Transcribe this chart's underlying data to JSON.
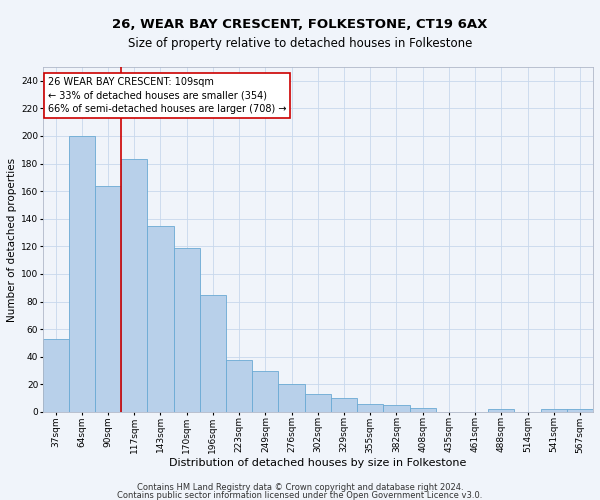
{
  "title": "26, WEAR BAY CRESCENT, FOLKESTONE, CT19 6AX",
  "subtitle": "Size of property relative to detached houses in Folkestone",
  "xlabel": "Distribution of detached houses by size in Folkestone",
  "ylabel": "Number of detached properties",
  "categories": [
    "37sqm",
    "64sqm",
    "90sqm",
    "117sqm",
    "143sqm",
    "170sqm",
    "196sqm",
    "223sqm",
    "249sqm",
    "276sqm",
    "302sqm",
    "329sqm",
    "355sqm",
    "382sqm",
    "408sqm",
    "435sqm",
    "461sqm",
    "488sqm",
    "514sqm",
    "541sqm",
    "567sqm"
  ],
  "values": [
    53,
    200,
    164,
    183,
    135,
    119,
    85,
    38,
    30,
    20,
    13,
    10,
    6,
    5,
    3,
    0,
    0,
    2,
    0,
    2,
    2
  ],
  "bar_color": "#b8d0ea",
  "bar_edge_color": "#6aaad4",
  "background_color": "#f0f4fa",
  "grid_color": "#c8d8ec",
  "ylim": [
    0,
    250
  ],
  "yticks": [
    0,
    20,
    40,
    60,
    80,
    100,
    120,
    140,
    160,
    180,
    200,
    220,
    240
  ],
  "property_line_color": "#cc0000",
  "property_line_x": 2.5,
  "annotation_line1": "26 WEAR BAY CRESCENT: 109sqm",
  "annotation_line2": "← 33% of detached houses are smaller (354)",
  "annotation_line3": "66% of semi-detached houses are larger (708) →",
  "annotation_box_color": "#ffffff",
  "annotation_box_edge_color": "#cc0000",
  "footer_line1": "Contains HM Land Registry data © Crown copyright and database right 2024.",
  "footer_line2": "Contains public sector information licensed under the Open Government Licence v3.0.",
  "title_fontsize": 9.5,
  "subtitle_fontsize": 8.5,
  "xlabel_fontsize": 8,
  "ylabel_fontsize": 7.5,
  "tick_fontsize": 6.5,
  "annotation_fontsize": 7,
  "footer_fontsize": 6
}
